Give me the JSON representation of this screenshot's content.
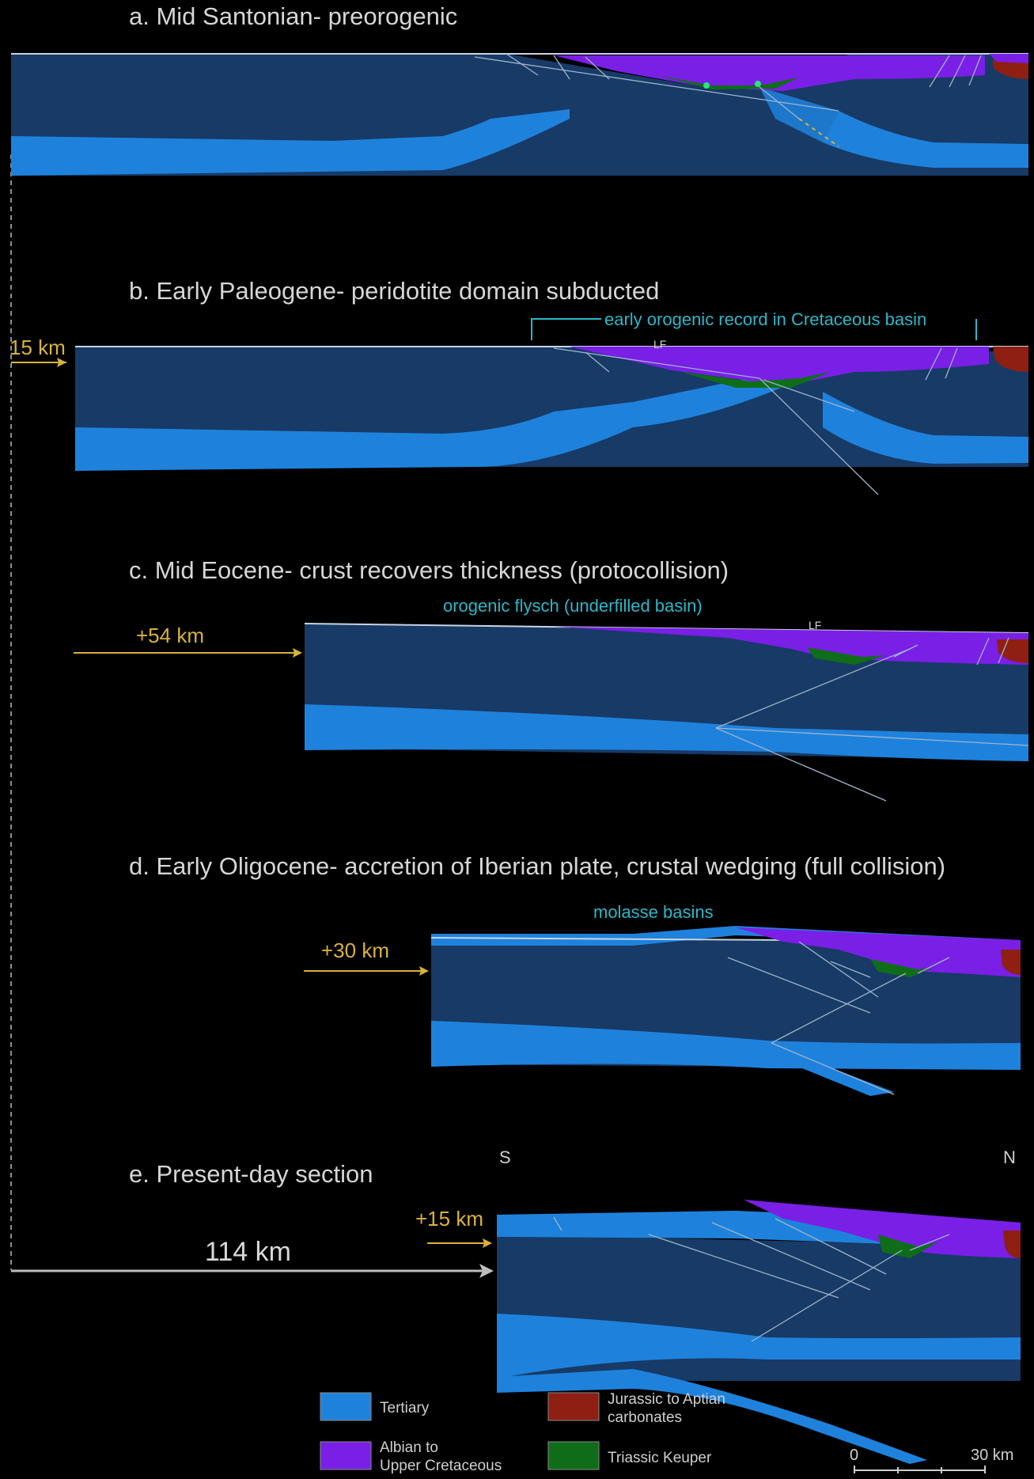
{
  "panels": {
    "a": {
      "title": "a. Mid Santonian- preorogenic"
    },
    "b": {
      "title": "b. Early Paleogene- peridotite domain subducted",
      "annotation": "early orogenic record in Cretaceous basin",
      "shift": "15 km",
      "fault_label": "LF"
    },
    "c": {
      "title": "c. Mid Eocene- crust recovers thickness (protocollision)",
      "annotation": "orogenic flysch (underfilled basin)",
      "shift": "+54 km",
      "fault_label": "LF"
    },
    "d": {
      "title": "d. Early Oligocene- accretion of Iberian plate, crustal wedging (full collision)",
      "annotation": "molasse basins",
      "shift": "+30 km"
    },
    "e": {
      "title": "e. Present-day section",
      "shift": "+15 km",
      "total_shift": "114 km",
      "south_label": "S",
      "north_label": "N"
    }
  },
  "legend": [
    {
      "label_lines": [
        "Tertiary"
      ],
      "color": "#1e82dc"
    },
    {
      "label_lines": [
        "Jurassic to Aptian",
        "carbonates"
      ],
      "color": "#8e1f12"
    },
    {
      "label_lines": [
        "Albian to",
        "Upper Cretaceous"
      ],
      "color": "#7a1fe6"
    },
    {
      "label_lines": [
        "Triassic Keuper"
      ],
      "color": "#0f6d1a"
    }
  ],
  "scale_bar": {
    "min_label": "0",
    "max_label": "30 km"
  },
  "colors": {
    "crust_dark": "#173a66",
    "tertiary": "#1e82dc",
    "cretaceous": "#7a1fe6",
    "jurassic": "#8e1f12",
    "triassic": "#0f6d1a",
    "annotation": "#2bb7c9",
    "shift_arrow": "#d9b33a"
  }
}
